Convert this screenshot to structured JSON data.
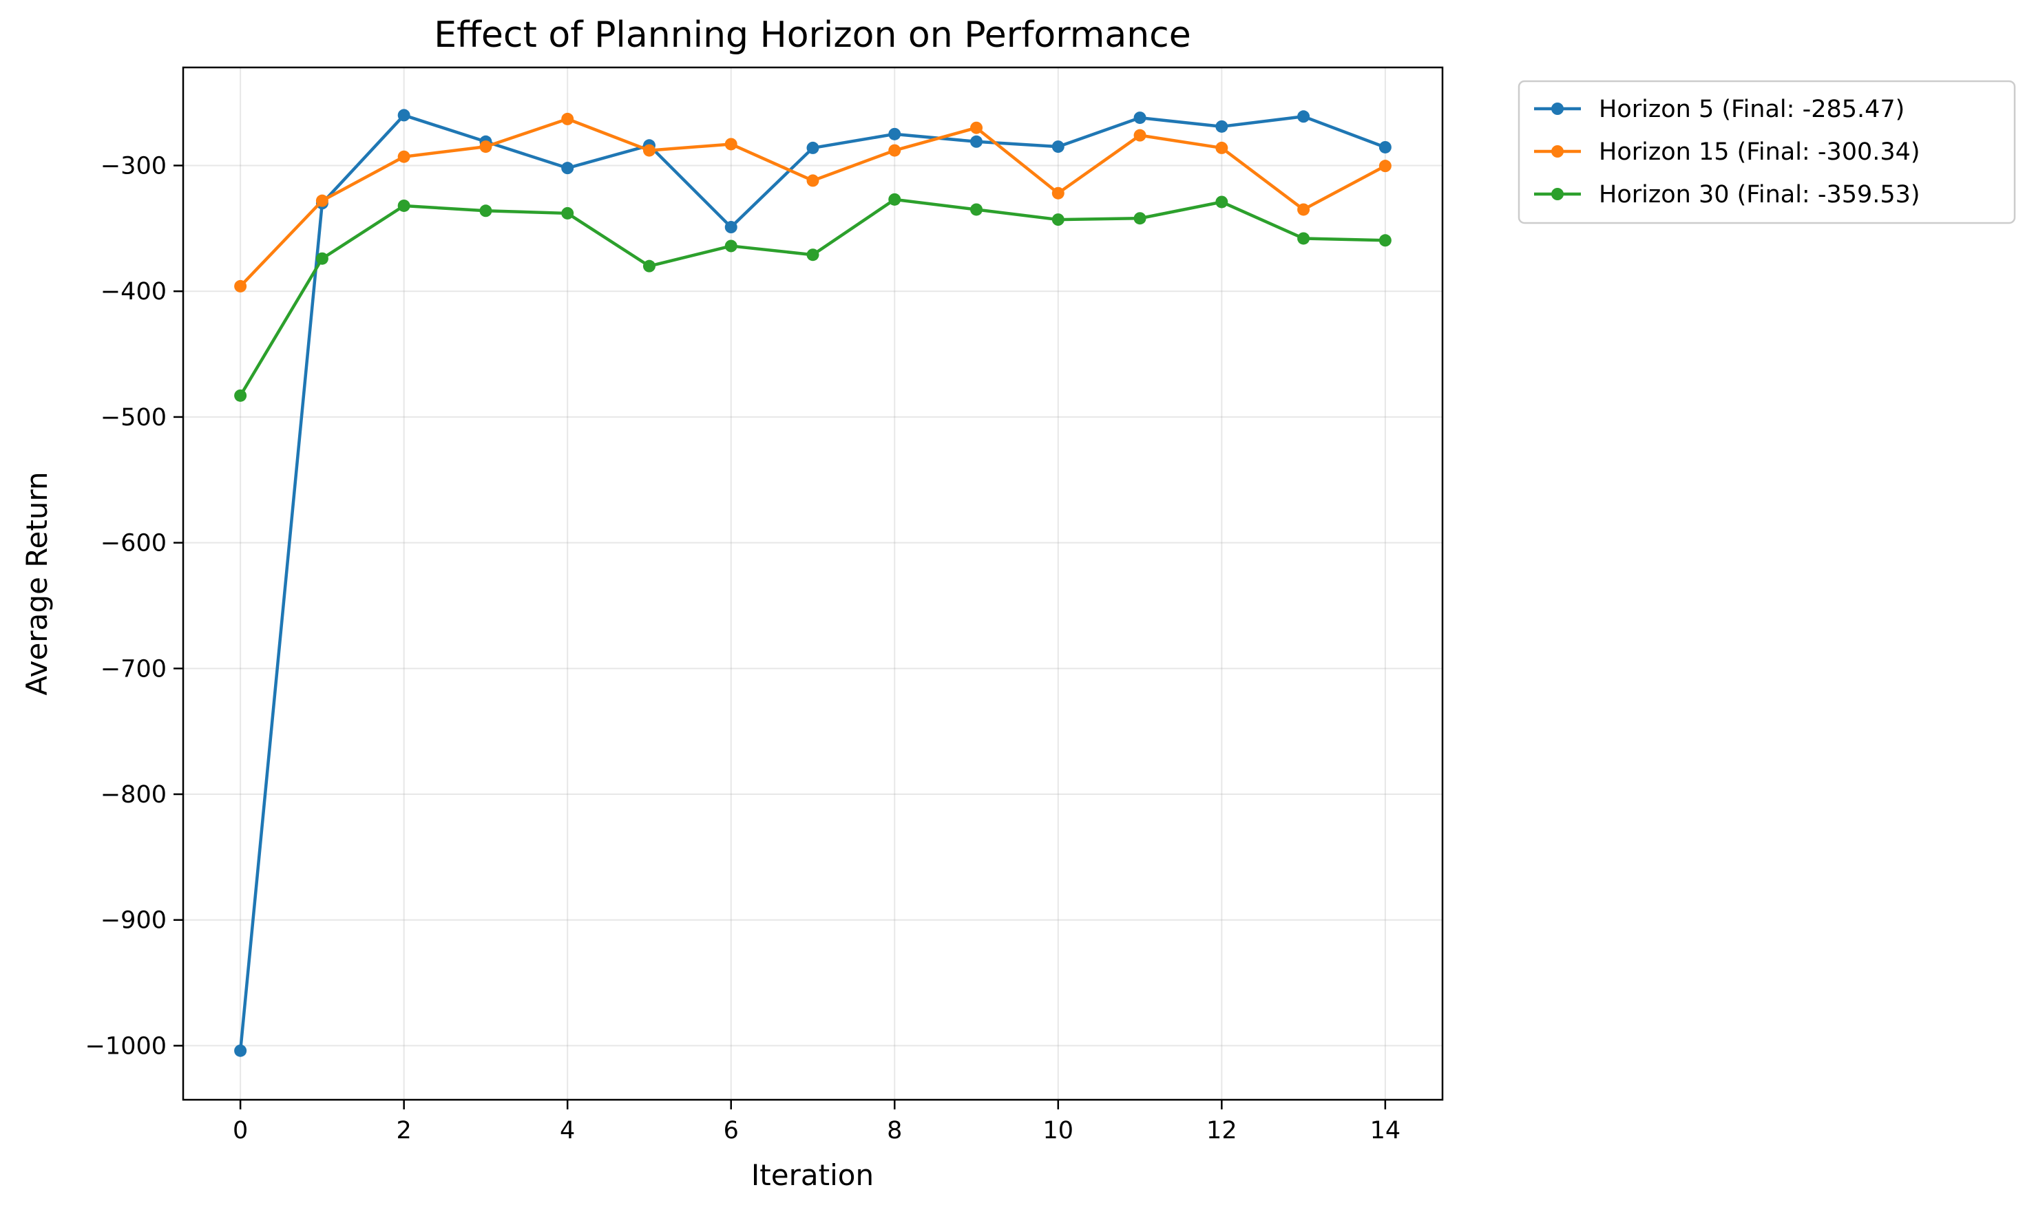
{
  "chart_data": {
    "type": "line",
    "title": "Effect of Planning Horizon on Performance",
    "xlabel": "Iteration",
    "ylabel": "Average Return",
    "xlim": [
      -0.7,
      14.7
    ],
    "ylim": [
      -1043,
      -222
    ],
    "xticks": [
      0,
      2,
      4,
      6,
      8,
      10,
      12,
      14
    ],
    "xtick_labels": [
      "0",
      "2",
      "4",
      "6",
      "8",
      "10",
      "12",
      "14"
    ],
    "yticks": [
      -1000,
      -900,
      -800,
      -700,
      -600,
      -500,
      -400,
      -300
    ],
    "ytick_labels": [
      "−1000",
      "−900",
      "−800",
      "−700",
      "−600",
      "−500",
      "−400",
      "−300"
    ],
    "grid": true,
    "legend_position": "outside-top-right",
    "x": [
      0,
      1,
      2,
      3,
      4,
      5,
      6,
      7,
      8,
      9,
      10,
      11,
      12,
      13,
      14
    ],
    "series": [
      {
        "name": "Horizon 5 (Final: -285.47)",
        "color": "#1f77b4",
        "values": [
          -1004,
          -330,
          -260,
          -281,
          -302,
          -284,
          -349,
          -286,
          -275,
          -281,
          -285,
          -262,
          -269,
          -261,
          -285.47
        ]
      },
      {
        "name": "Horizon 15 (Final: -300.34)",
        "color": "#ff7f0e",
        "values": [
          -396,
          -328,
          -293,
          -285,
          -263,
          -288,
          -283,
          -312,
          -288,
          -270,
          -322,
          -276,
          -286,
          -335,
          -300.34
        ]
      },
      {
        "name": "Horizon 30 (Final: -359.53)",
        "color": "#2ca02c",
        "values": [
          -483,
          -374,
          -332,
          -336,
          -338,
          -380,
          -364,
          -371,
          -327,
          -335,
          -343,
          -342,
          -329,
          -358,
          -359.53
        ]
      }
    ]
  }
}
